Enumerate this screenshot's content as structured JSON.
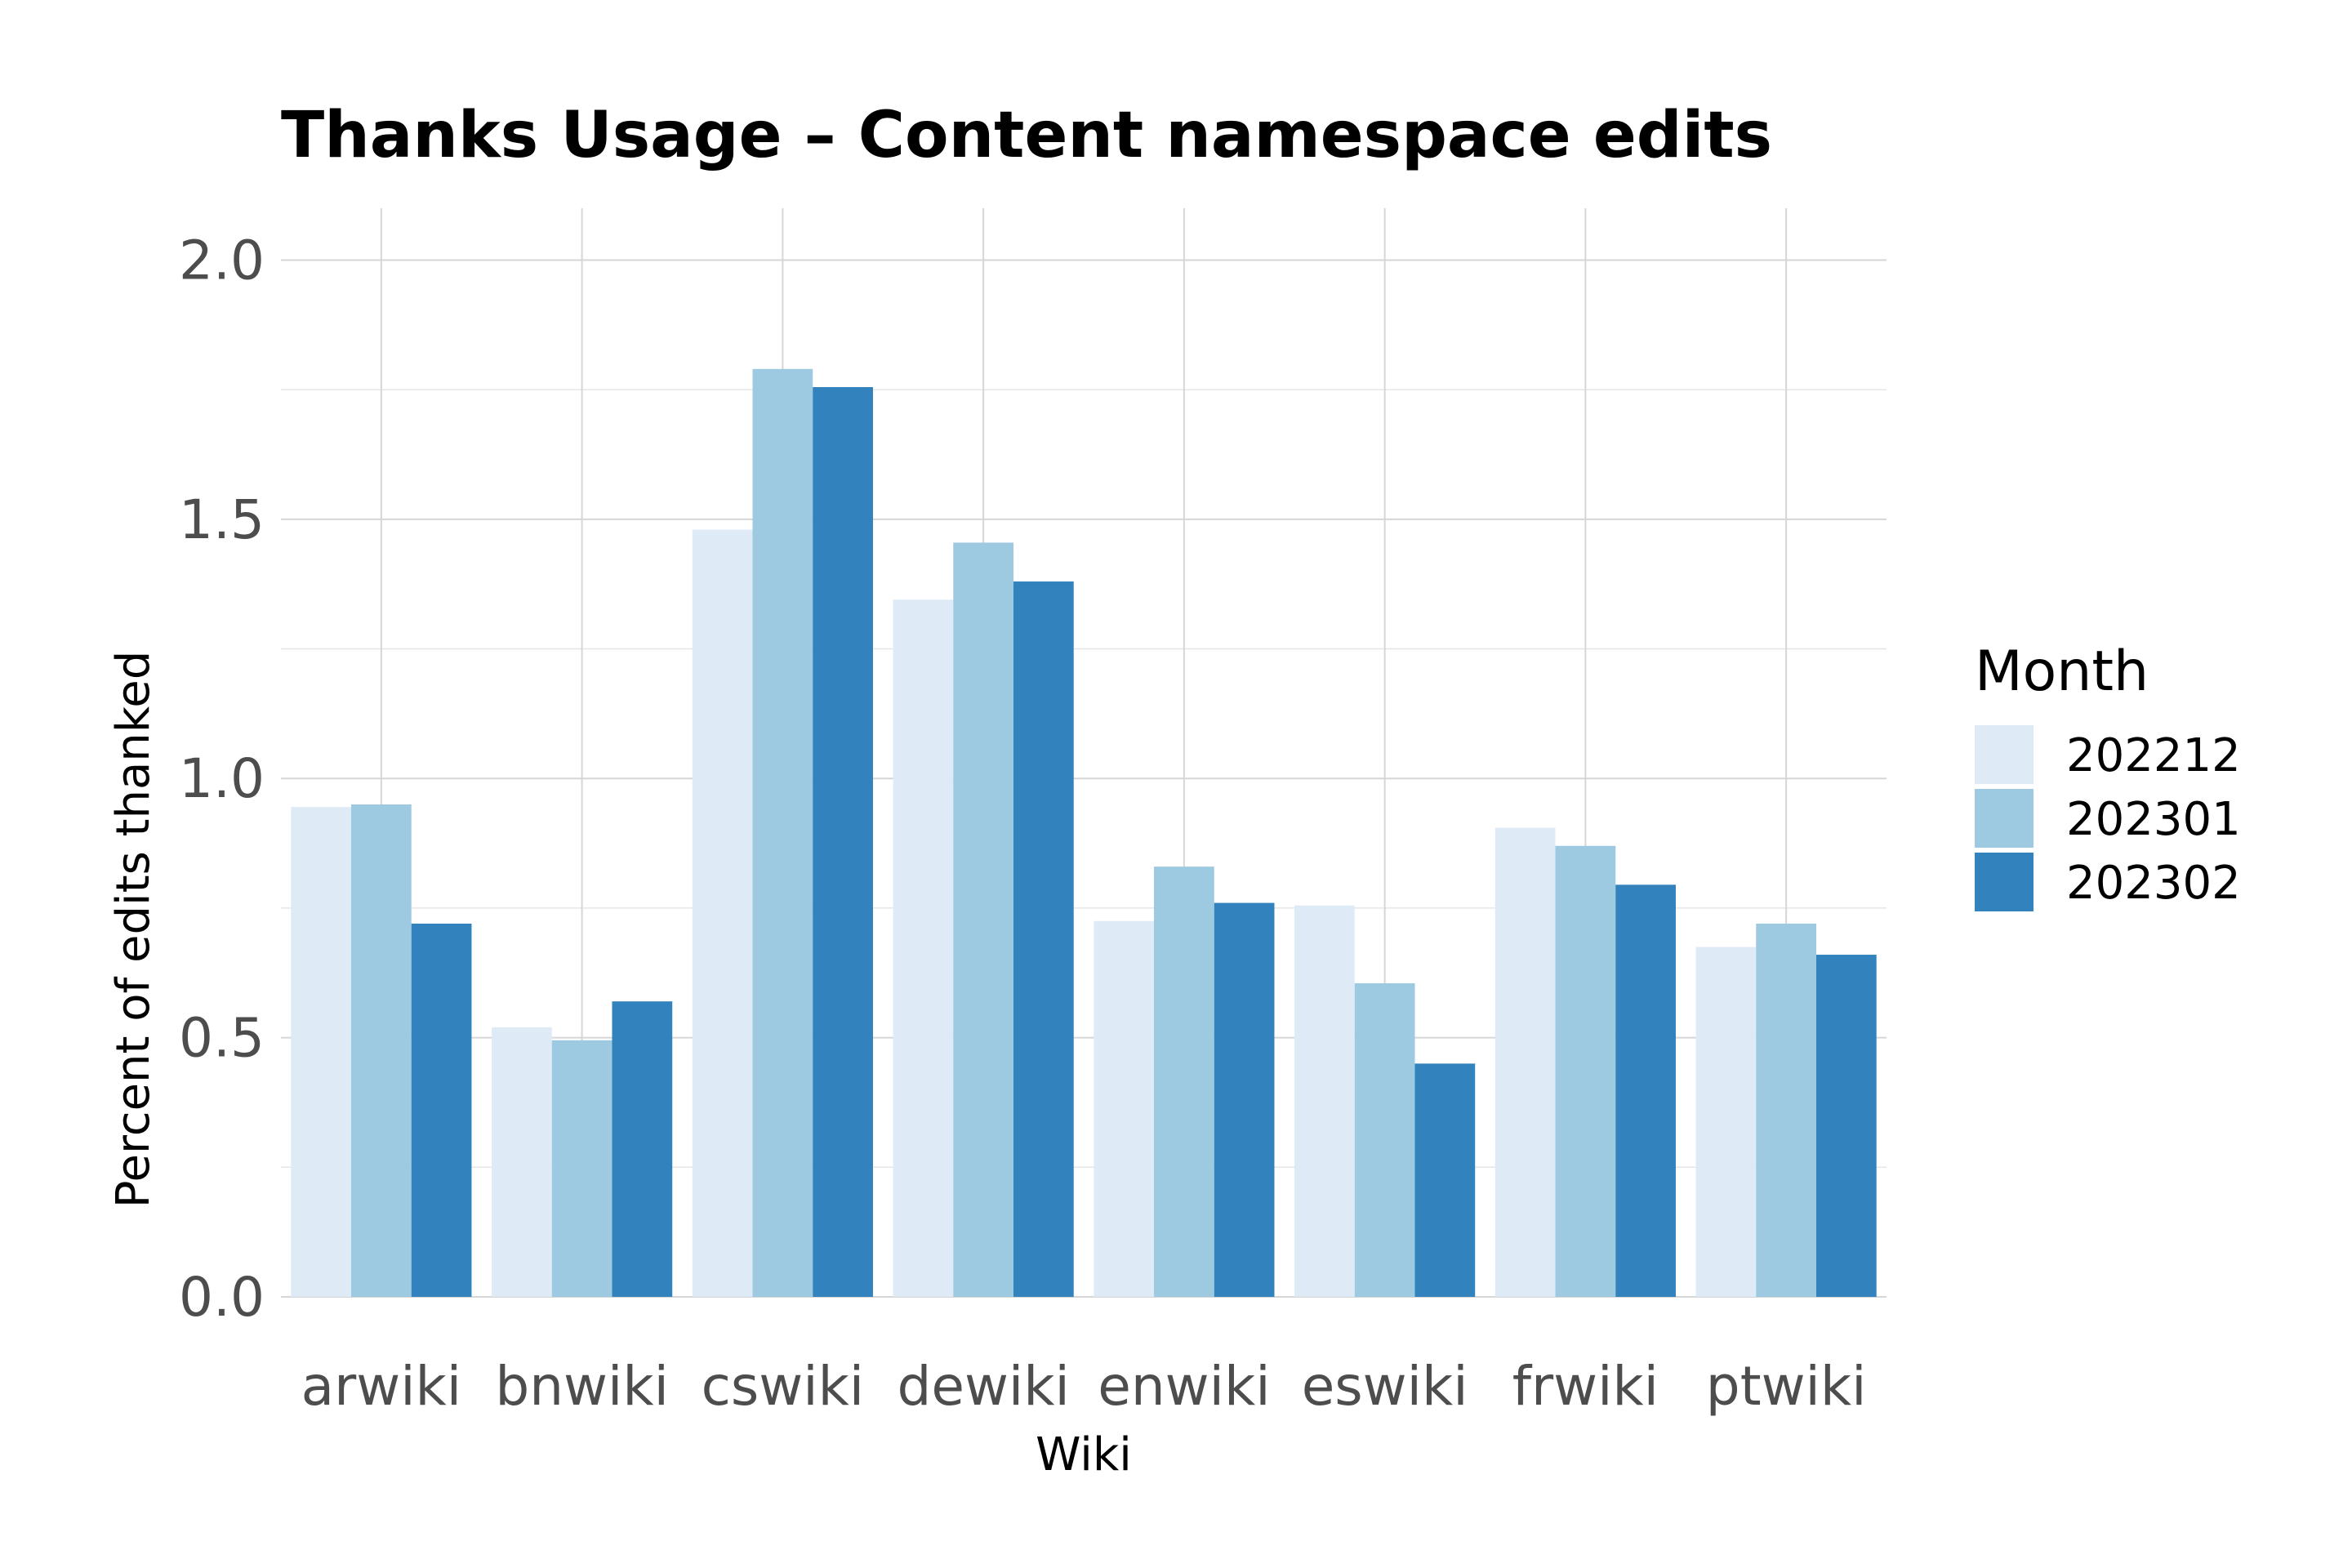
{
  "chart_data": {
    "type": "bar",
    "title": "Thanks Usage – Content namespace edits",
    "xlabel": "Wiki",
    "ylabel": "Percent of edits thanked",
    "ylim": [
      0,
      2.1
    ],
    "yticks": [
      0.0,
      0.5,
      1.0,
      1.5,
      2.0
    ],
    "ytick_labels": [
      "0.0",
      "0.5",
      "1.0",
      "1.5",
      "2.0"
    ],
    "grid": true,
    "legend": {
      "title": "Month",
      "placement": "right"
    },
    "categories": [
      "arwiki",
      "bnwiki",
      "cswiki",
      "dewiki",
      "enwiki",
      "eswiki",
      "frwiki",
      "ptwiki"
    ],
    "series": [
      {
        "name": "202212",
        "color": "#deebf7",
        "values": [
          0.945,
          0.52,
          1.48,
          1.345,
          0.725,
          0.755,
          0.905,
          0.675
        ]
      },
      {
        "name": "202301",
        "color": "#9ecae1",
        "values": [
          0.95,
          0.495,
          1.79,
          1.455,
          0.83,
          0.605,
          0.87,
          0.72
        ]
      },
      {
        "name": "202302",
        "color": "#3182bd",
        "values": [
          0.72,
          0.57,
          1.755,
          1.38,
          0.76,
          0.45,
          0.795,
          0.66
        ]
      }
    ]
  }
}
